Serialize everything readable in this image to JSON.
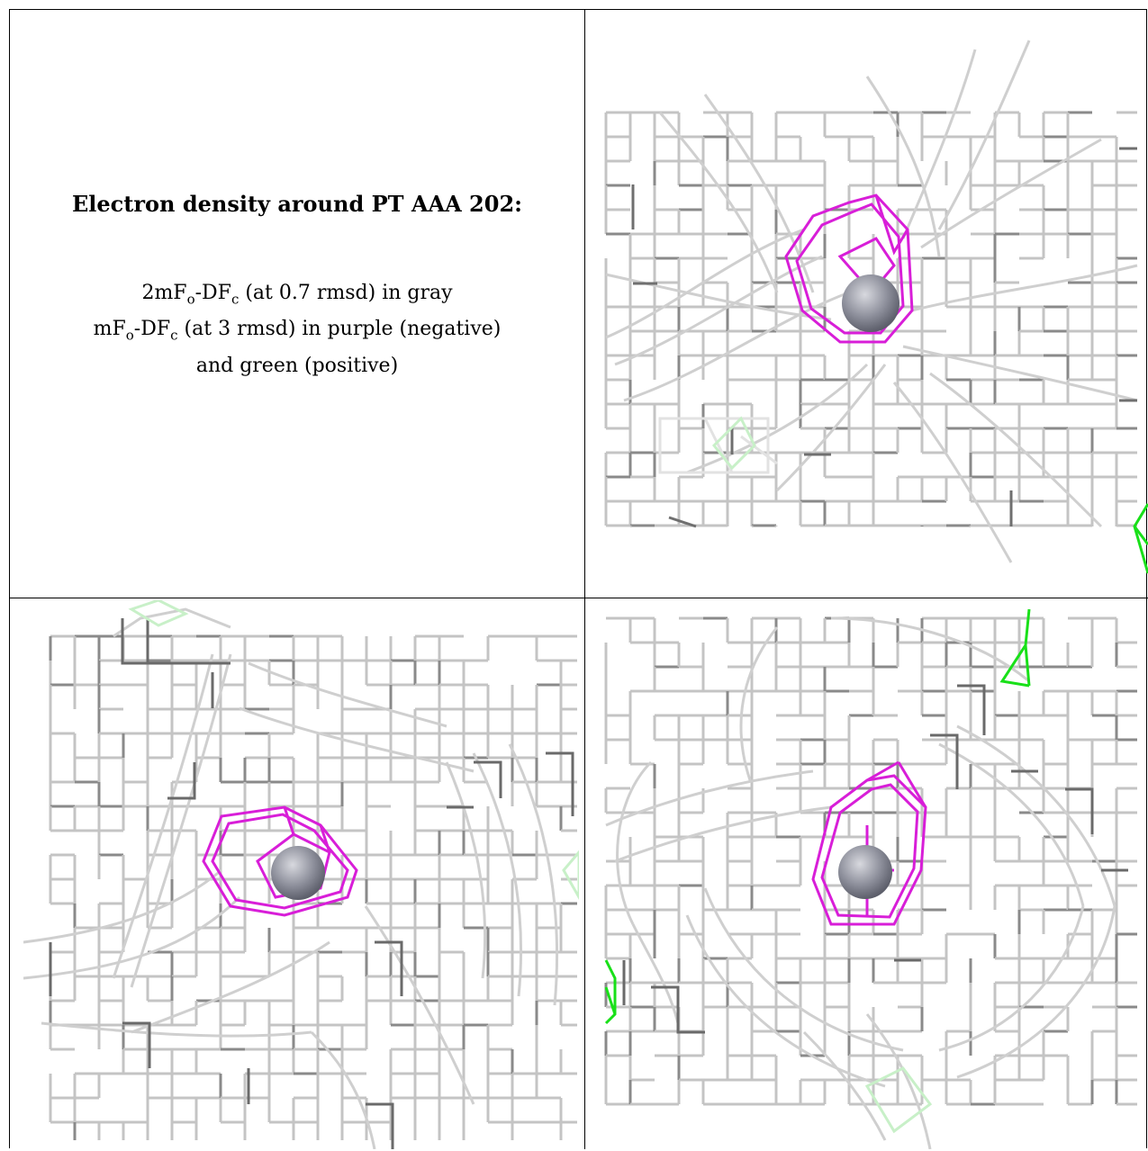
{
  "caption": {
    "title": "Electron density around PT AAA 202:",
    "line1_prefix": "2mF",
    "line1_sub1": "o",
    "line1_mid": "-DF",
    "line1_sub2": "c",
    "line1_suffix": " (at 0.7 rmsd) in gray",
    "line2_prefix": "mF",
    "line2_sub1": "o",
    "line2_mid": "-DF",
    "line2_sub2": "c",
    "line2_suffix": " (at 3 rmsd) in purple (negative)",
    "line3": "and green (positive)"
  },
  "colors": {
    "gray_mesh": "#c4c4c4",
    "dark_mesh": "#6a6a6a",
    "negative_mesh": "#d81ed8",
    "positive_mesh": "#19e019",
    "atom_sphere": "#8d8f9b"
  },
  "views": [
    {
      "name": "view-1"
    },
    {
      "name": "view-2"
    },
    {
      "name": "view-3"
    }
  ]
}
